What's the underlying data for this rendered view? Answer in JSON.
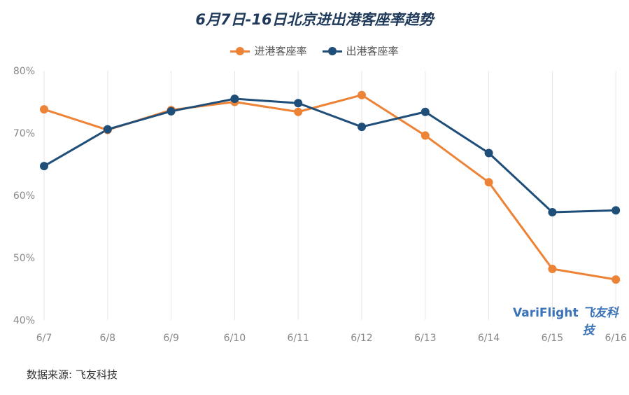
{
  "chart_data": {
    "type": "line",
    "title": "6月7日-16日北京进出港客座率趋势",
    "categories": [
      "6/7",
      "6/8",
      "6/9",
      "6/10",
      "6/11",
      "6/12",
      "6/13",
      "6/14",
      "6/15",
      "6/16"
    ],
    "yticks": [
      "40%",
      "50%",
      "60%",
      "70%",
      "80%"
    ],
    "ylim": [
      40,
      80
    ],
    "grid": "vertical",
    "legend_position": "top-center",
    "series": [
      {
        "name": "进港客座率",
        "color": "#ed8336",
        "values": [
          73.8,
          70.5,
          73.7,
          75.0,
          73.4,
          76.1,
          69.6,
          62.1,
          48.2,
          46.5
        ]
      },
      {
        "name": "出港客座率",
        "color": "#1f4e79",
        "values": [
          64.7,
          70.6,
          73.5,
          75.5,
          74.8,
          71.0,
          73.4,
          66.8,
          57.3,
          57.6
        ]
      }
    ]
  },
  "footer": {
    "source": "数据来源: 飞友科技"
  },
  "watermark": {
    "brand_en": "VariFlight",
    "brand_cn": "飞友科技"
  }
}
